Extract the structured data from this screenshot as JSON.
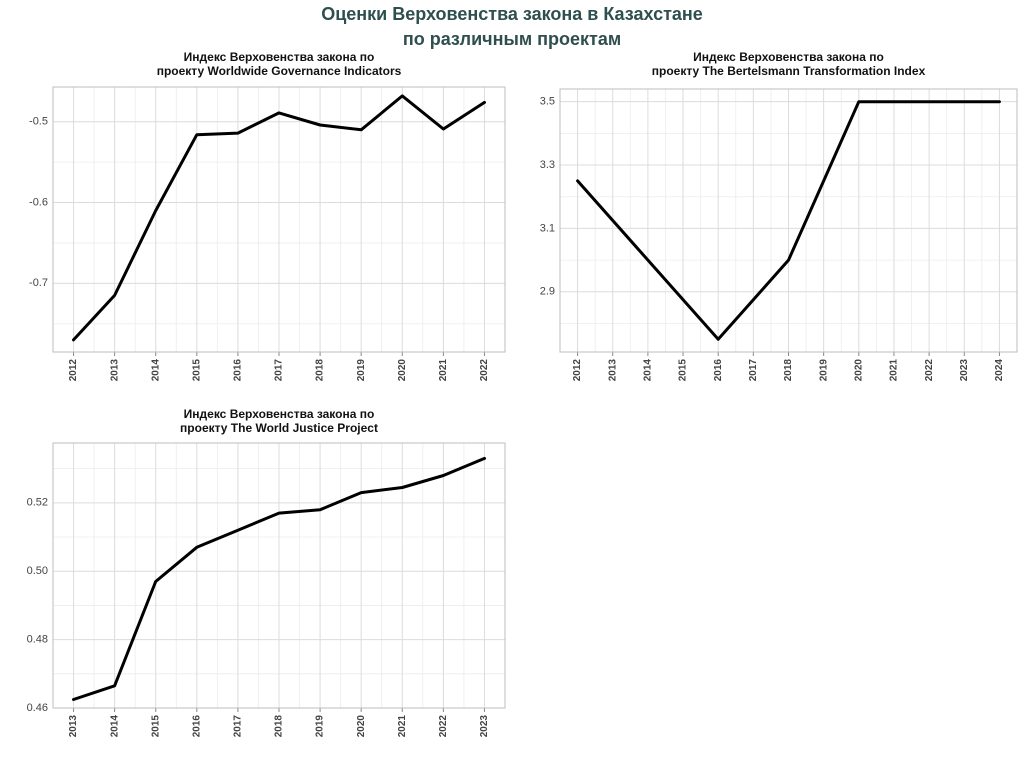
{
  "page": {
    "title_line1": "Оценки Верховенства закона в Казахстане",
    "title_line2": "по различным проектам"
  },
  "chart_data": [
    {
      "type": "line",
      "title": [
        "Индекс Верховенства закона по",
        "проекту Worldwide Governance Indicators"
      ],
      "x": [
        2012,
        2013,
        2014,
        2015,
        2016,
        2017,
        2018,
        2019,
        2020,
        2021,
        2022
      ],
      "values": [
        -0.77,
        -0.715,
        -0.61,
        -0.516,
        -0.514,
        -0.489,
        -0.504,
        -0.51,
        -0.468,
        -0.509,
        -0.476
      ],
      "ylim": [
        -0.785,
        -0.457
      ],
      "yticks": [
        -0.7,
        -0.6,
        -0.5
      ],
      "ytick_labels": [
        "-0.7",
        "-0.6",
        "-0.5"
      ],
      "color": "#000000",
      "grid": true
    },
    {
      "type": "line",
      "title": [
        "Индекс Верховенства закона по",
        "проекту The Bertelsmann Transformation Index"
      ],
      "x": [
        2012,
        2013,
        2014,
        2015,
        2016,
        2017,
        2018,
        2019,
        2020,
        2021,
        2022,
        2023,
        2024
      ],
      "values": [
        3.25,
        null,
        null,
        null,
        2.75,
        null,
        3.0,
        null,
        3.5,
        null,
        3.5,
        null,
        3.5
      ],
      "ylim": [
        2.71,
        3.54
      ],
      "yticks": [
        2.9,
        3.1,
        3.3,
        3.5
      ],
      "ytick_labels": [
        "2.9",
        "3.1",
        "3.3",
        "3.5"
      ],
      "color": "#000000",
      "grid": true
    },
    {
      "type": "line",
      "title": [
        "Индекс Верховенства закона по",
        "проекту The World Justice Project"
      ],
      "x": [
        2013,
        2014,
        2015,
        2016,
        2017,
        2018,
        2019,
        2020,
        2021,
        2022,
        2023
      ],
      "values": [
        0.4625,
        0.4665,
        0.497,
        0.507,
        0.512,
        0.517,
        0.518,
        0.523,
        0.5245,
        0.528,
        0.533
      ],
      "ylim": [
        0.46,
        0.5375
      ],
      "yticks": [
        0.46,
        0.48,
        0.5,
        0.52
      ],
      "ytick_labels": [
        "0.46",
        "0.48",
        "0.50",
        "0.52"
      ],
      "color": "#000000",
      "grid": true
    }
  ]
}
